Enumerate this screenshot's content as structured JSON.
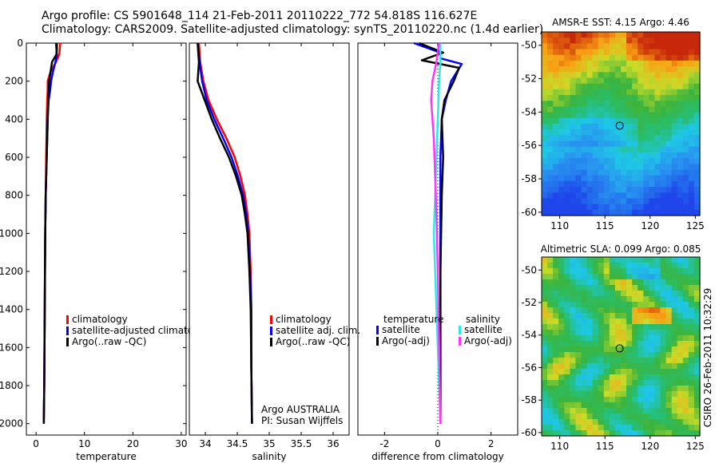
{
  "title": {
    "line1": "Argo profile: CS 5901648_114 21-Feb-2011 20110222_772 54.818S 116.627E",
    "line2": "Climatology: CARS2009. Satellite-adjusted climatology: synTS_20110220.nc (1.4d earlier)"
  },
  "colors": {
    "red": "#ff0000",
    "blue": "#0000ff",
    "black": "#000000",
    "cyan": "#33e6e6",
    "magenta": "#ff33ff"
  },
  "footer_text": "CSIRO 26-Feb-2011 10:32:29",
  "chart_data": [
    {
      "type": "line",
      "name": "temperature",
      "xlabel": "temperature",
      "ylabel": "",
      "xlim": [
        -2,
        31
      ],
      "ylim": [
        2060,
        0
      ],
      "y_reversed": true,
      "xticks": [
        0,
        10,
        20,
        30
      ],
      "yticks": [
        0,
        200,
        400,
        600,
        800,
        1000,
        1200,
        1400,
        1600,
        1800,
        2000
      ],
      "legend": [
        "climatology",
        "satellite-adjusted climatology",
        "Argo(..raw -QC)"
      ],
      "series": [
        {
          "name": "climatology",
          "color": "red",
          "x": [
            5.0,
            4.9,
            4.8,
            4.1,
            3.0,
            2.4,
            2.4,
            2.3,
            2.2,
            2.1,
            2.0,
            1.9,
            1.8,
            1.7,
            1.6
          ],
          "y": [
            0,
            30,
            60,
            100,
            150,
            200,
            250,
            300,
            400,
            600,
            800,
            1000,
            1400,
            1800,
            2000
          ]
        },
        {
          "name": "satellite-adjusted climatology",
          "color": "blue",
          "x": [
            4.1,
            4.2,
            4.3,
            4.0,
            3.5,
            3.1,
            2.9,
            2.6,
            2.4,
            2.2,
            2.0,
            1.9,
            1.8,
            1.7,
            1.6
          ],
          "y": [
            0,
            30,
            60,
            100,
            150,
            200,
            250,
            300,
            400,
            600,
            800,
            1000,
            1400,
            1800,
            2000
          ]
        },
        {
          "name": "Argo(..raw -QC)",
          "color": "black",
          "x": [
            4.3,
            4.3,
            4.2,
            3.3,
            3.0,
            2.7,
            2.6,
            2.5,
            2.4,
            2.2,
            2.0,
            1.9,
            1.8,
            1.7,
            1.6
          ],
          "y": [
            0,
            30,
            60,
            100,
            150,
            200,
            250,
            300,
            400,
            600,
            800,
            1000,
            1400,
            1800,
            2000
          ]
        }
      ]
    },
    {
      "type": "line",
      "name": "salinity",
      "xlabel": "salinity",
      "xlim": [
        33.75,
        36.25
      ],
      "ylim": [
        2060,
        0
      ],
      "y_reversed": true,
      "xticks": [
        34,
        34.5,
        35,
        35.5,
        36
      ],
      "xticklabels": [
        "34",
        "34.5",
        "35",
        "35.5",
        "36"
      ],
      "legend": [
        "climatology",
        "satellite adj. clim.",
        "Argo(..raw -QC)"
      ],
      "annotation": [
        "Argo AUSTRALIA",
        "PI: Susan Wijffels"
      ],
      "series": [
        {
          "name": "climatology",
          "color": "red",
          "x": [
            33.9,
            33.92,
            33.97,
            34.05,
            34.18,
            34.33,
            34.46,
            34.55,
            34.62,
            34.66,
            34.69,
            34.71,
            34.72,
            34.72,
            34.73
          ],
          "y": [
            0,
            100,
            200,
            300,
            400,
            500,
            600,
            700,
            800,
            900,
            1000,
            1200,
            1400,
            1700,
            2000
          ]
        },
        {
          "name": "satellite adj. clim.",
          "color": "blue",
          "x": [
            33.88,
            33.91,
            33.95,
            34.02,
            34.14,
            34.28,
            34.41,
            34.51,
            34.59,
            34.64,
            34.67,
            34.7,
            34.72,
            34.72,
            34.73
          ],
          "y": [
            0,
            100,
            200,
            300,
            400,
            500,
            600,
            700,
            800,
            900,
            1000,
            1200,
            1400,
            1700,
            2000
          ]
        },
        {
          "name": "Argo(..raw -QC)",
          "color": "black",
          "x": [
            33.88,
            33.9,
            33.88,
            33.99,
            34.1,
            34.23,
            34.37,
            34.48,
            34.57,
            34.62,
            34.66,
            34.69,
            34.71,
            34.72,
            34.73
          ],
          "y": [
            0,
            100,
            200,
            300,
            400,
            500,
            600,
            700,
            800,
            900,
            1000,
            1200,
            1400,
            1700,
            2000
          ]
        }
      ]
    },
    {
      "type": "line",
      "name": "difference from climatology",
      "xlabel": "difference from climatology",
      "xlim": [
        -3,
        3
      ],
      "ylim": [
        2060,
        0
      ],
      "y_reversed": true,
      "xticks": [
        -2,
        0,
        2
      ],
      "legend_headers": [
        "temperature",
        "salinity"
      ],
      "legend": [
        "satellite",
        "Argo(-adj)",
        "satellite",
        "Argo(-adj)"
      ],
      "series": [
        {
          "name": "temperature satellite",
          "color": "blue",
          "x": [
            -0.9,
            0.1,
            0.1,
            0.9,
            0.5,
            0.3,
            0.15,
            0.1,
            0.1,
            0.1,
            0.1,
            0.1
          ],
          "y": [
            0,
            50,
            80,
            110,
            200,
            300,
            400,
            600,
            800,
            1200,
            1600,
            2000
          ]
        },
        {
          "name": "temperature Argo(-adj)",
          "color": "black",
          "x": [
            -0.7,
            0.2,
            -0.6,
            0.8,
            0.6,
            0.25,
            0.15,
            0.2,
            0.15,
            0.1,
            0.1,
            0.1
          ],
          "y": [
            0,
            50,
            90,
            130,
            200,
            300,
            400,
            600,
            800,
            1200,
            1600,
            2000
          ]
        },
        {
          "name": "salinity satellite",
          "color": "cyan",
          "x": [
            0.1,
            0.1,
            0.05,
            0.0,
            -0.05,
            -0.1,
            -0.15,
            -0.1,
            -0.05,
            0.0,
            0.05,
            0.1
          ],
          "y": [
            0,
            100,
            200,
            400,
            600,
            800,
            1000,
            1200,
            1400,
            1600,
            1800,
            2000
          ]
        },
        {
          "name": "salinity Argo(-adj)",
          "color": "magenta",
          "x": [
            0.05,
            -0.05,
            -0.2,
            -0.25,
            -0.15,
            -0.1,
            -0.05,
            0.0,
            0.05,
            0.1
          ],
          "y": [
            0,
            100,
            200,
            300,
            500,
            700,
            900,
            1200,
            1600,
            2000
          ]
        }
      ]
    },
    {
      "type": "heatmap",
      "name": "AMSR-E SST",
      "title": "AMSR-E SST: 4.15 Argo: 4.46",
      "xlim": [
        108,
        125.5
      ],
      "ylim": [
        -60.2,
        -49.2
      ],
      "xticks": [
        110,
        115,
        120,
        125
      ],
      "yticks": [
        -50,
        -52,
        -54,
        -56,
        -58,
        -60
      ],
      "marker": [
        116.627,
        -54.818
      ]
    },
    {
      "type": "heatmap",
      "name": "Altimetric SLA",
      "title": "Altimetric SLA: 0.099 Argo: 0.085",
      "xlim": [
        108,
        125.5
      ],
      "ylim": [
        -60.2,
        -49.2
      ],
      "xticks": [
        110,
        115,
        120,
        125
      ],
      "yticks": [
        -50,
        -52,
        -54,
        -56,
        -58,
        -60
      ],
      "marker": [
        116.627,
        -54.818
      ]
    }
  ]
}
